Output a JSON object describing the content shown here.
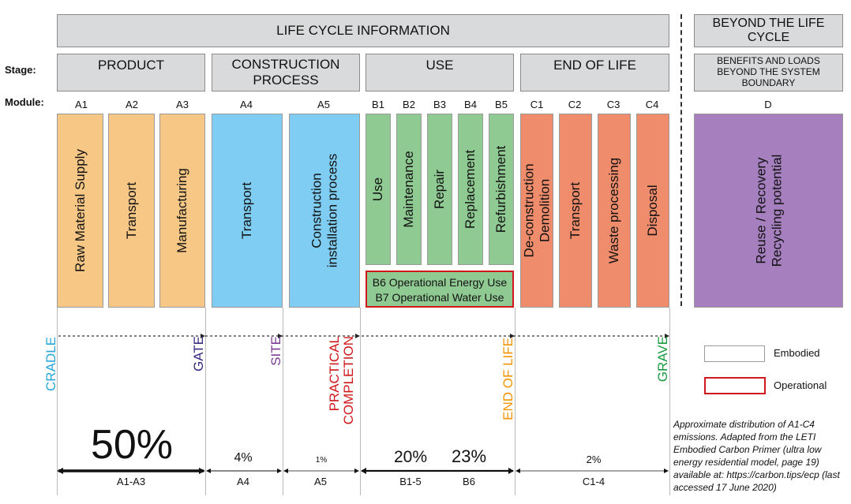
{
  "headers": {
    "life_cycle": "LIFE CYCLE INFORMATION",
    "beyond": "BEYOND THE LIFE CYCLE"
  },
  "row_labels": {
    "stage": "Stage:",
    "module": "Module:"
  },
  "stages": {
    "product": "PRODUCT",
    "construction": "CONSTRUCTION PROCESS",
    "use": "USE",
    "end_of_life": "END OF LIFE",
    "benefits": "BENEFITS AND LOADS BEYOND THE SYSTEM BOUNDARY"
  },
  "modules": {
    "a1": {
      "code": "A1",
      "label": "Raw Material Supply"
    },
    "a2": {
      "code": "A2",
      "label": "Transport"
    },
    "a3": {
      "code": "A3",
      "label": "Manufacturing"
    },
    "a4": {
      "code": "A4",
      "label": "Transport"
    },
    "a5": {
      "code": "A5",
      "label": "Construction installation process"
    },
    "b1": {
      "code": "B1",
      "label": "Use"
    },
    "b2": {
      "code": "B2",
      "label": "Maintenance"
    },
    "b3": {
      "code": "B3",
      "label": "Repair"
    },
    "b4": {
      "code": "B4",
      "label": "Replacement"
    },
    "b5": {
      "code": "B5",
      "label": "Refurbishment"
    },
    "c1": {
      "code": "C1",
      "label": "De-construction Demolition"
    },
    "c2": {
      "code": "C2",
      "label": "Transport"
    },
    "c3": {
      "code": "C3",
      "label": "Waste processing"
    },
    "c4": {
      "code": "C4",
      "label": "Disposal"
    },
    "d": {
      "code": "D",
      "label": "Reuse / Recovery Recycling potential"
    }
  },
  "operational": {
    "b6": "B6 Operational Energy Use",
    "b7": "B7 Operational Water Use"
  },
  "milestones": {
    "cradle": "CRADLE",
    "gate": "GATE",
    "site": "SITE",
    "practical_completion": "PRACTICAL COMPLETION",
    "end_of_life": "END OF LIFE",
    "grave": "GRAVE"
  },
  "distribution": [
    {
      "percent": "50%",
      "label": "A1-A3"
    },
    {
      "percent": "4%",
      "label": "A4"
    },
    {
      "percent": "1%",
      "label": "A5"
    },
    {
      "percent": "20%",
      "label": "B1-5"
    },
    {
      "percent": "23%",
      "label": "B6"
    },
    {
      "percent": "2%",
      "label": "C1-4"
    }
  ],
  "legend": {
    "embodied": "Embodied",
    "operational": "Operational"
  },
  "note": "Approximate distribution of A1-C4 emissions. Adapted from the LETI Embodied Carbon Primer (ultra low energy residential model, page 19) available at: https://carbon.tips/ecp (last accessed 17 June 2020)",
  "colors": {
    "product": "#f7c785",
    "construction": "#7fcdf2",
    "use": "#8fca92",
    "end_of_life": "#ef8c6c",
    "beyond": "#a67fbe",
    "header_grey": "#d9dadb",
    "operational_red": "#d0171b",
    "cradle": "#2aa6d8",
    "gate": "#3b2a83",
    "site": "#7a3b97",
    "completion": "#d0171b",
    "end_of_life_label": "#f29400",
    "grave": "#1a9a3f"
  }
}
